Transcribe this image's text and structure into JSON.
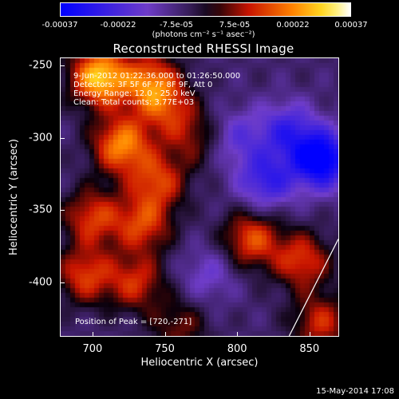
{
  "colorbar": {
    "tick_labels": [
      "-0.00037",
      "-0.00022",
      "-7.5e-05",
      "7.5e-05",
      "0.00022",
      "0.00037"
    ],
    "unit": "(photons cm⁻² s⁻¹ asec⁻²)",
    "range": [
      -0.00037,
      0.00037
    ]
  },
  "title": "Reconstructed RHESSI Image",
  "info_lines": [
    "9-Jun-2012 01:22:36.000 to 01:26:50.000",
    "Detectors: 3F 5F 6F 7F 8F 9F, Att 0",
    "Energy Range: 12.0 - 25.0 keV",
    "Clean: Total counts: 3.77E+03"
  ],
  "peak_label": "Position of Peak = [720,-271]",
  "footer": "15-May-2014 17:08",
  "chart_data": {
    "type": "heatmap",
    "title": "Reconstructed RHESSI Image",
    "xlabel": "Heliocentric X (arcsec)",
    "ylabel": "Heliocentric Y (arcsec)",
    "xlim": [
      678,
      870
    ],
    "ylim": [
      -437,
      -245
    ],
    "x_ticks": [
      "700",
      "750",
      "800",
      "850"
    ],
    "y_ticks": [
      "-250",
      "-300",
      "-350",
      "-400"
    ],
    "colormap": "blue-purple-black-red-orange-yellow-white",
    "value_range": [
      -0.00037,
      0.00037
    ],
    "peak_position": [
      720,
      -271
    ],
    "limb_line_points": [
      [
        836,
        -437
      ],
      [
        870,
        -370
      ]
    ],
    "features": [
      {
        "x": 705,
        "y": -258,
        "value": 0.00035
      },
      {
        "x": 740,
        "y": -262,
        "value": 0.00025
      },
      {
        "x": 720,
        "y": -305,
        "value": 0.00028
      },
      {
        "x": 752,
        "y": -280,
        "value": 0.00015
      },
      {
        "x": 770,
        "y": -300,
        "value": 0.00012
      },
      {
        "x": 745,
        "y": -330,
        "value": 0.0002
      },
      {
        "x": 700,
        "y": -355,
        "value": 0.0002
      },
      {
        "x": 735,
        "y": -360,
        "value": 0.0002
      },
      {
        "x": 695,
        "y": -395,
        "value": 0.0002
      },
      {
        "x": 730,
        "y": -400,
        "value": 0.00018
      },
      {
        "x": 760,
        "y": -430,
        "value": 0.00012
      },
      {
        "x": 810,
        "y": -370,
        "value": 0.00022
      },
      {
        "x": 845,
        "y": -385,
        "value": 0.0002
      },
      {
        "x": 858,
        "y": -428,
        "value": 0.00018
      },
      {
        "x": 858,
        "y": -315,
        "value": -0.00035
      },
      {
        "x": 820,
        "y": -330,
        "value": -0.0002
      },
      {
        "x": 835,
        "y": -295,
        "value": -0.00018
      },
      {
        "x": 780,
        "y": -395,
        "value": -0.0001
      },
      {
        "x": 800,
        "y": -300,
        "value": -0.00012
      }
    ]
  }
}
